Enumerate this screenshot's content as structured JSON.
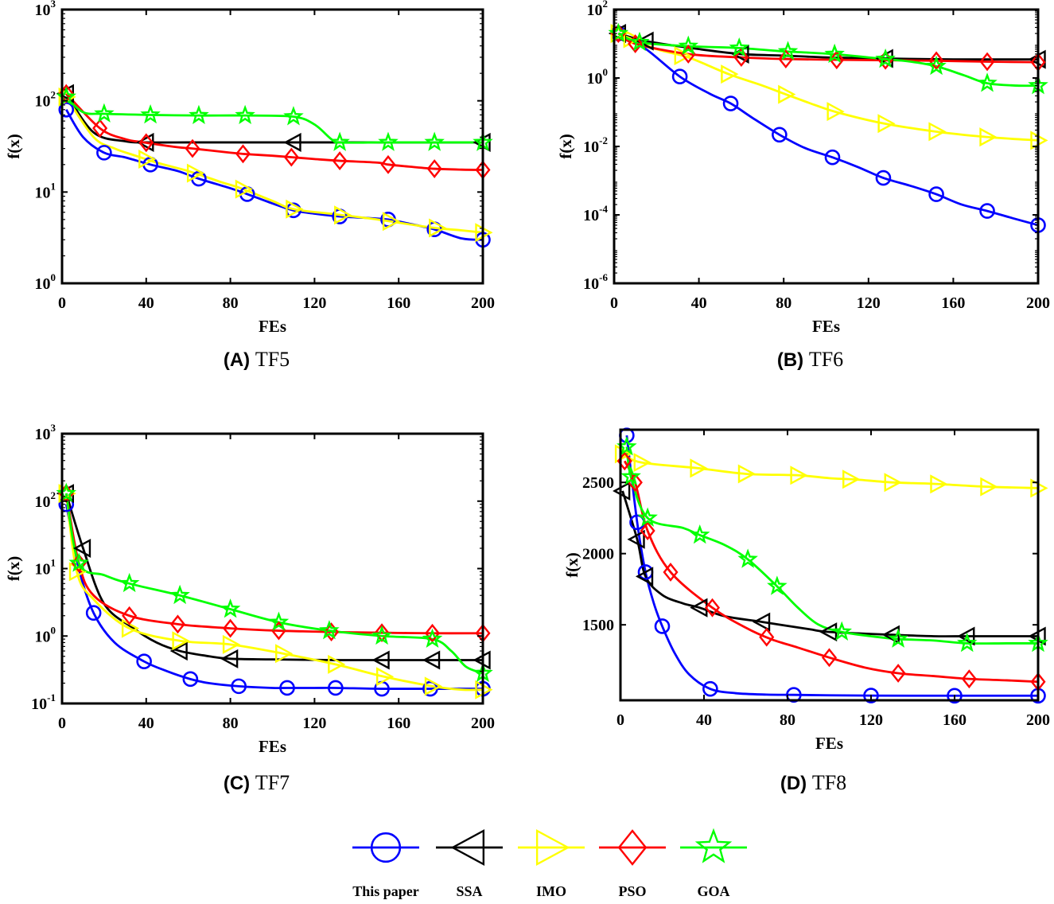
{
  "legend": [
    {
      "name": "This paper",
      "color": "#0000ff",
      "marker": "circle"
    },
    {
      "name": "SSA",
      "color": "#000000",
      "marker": "triangle-left"
    },
    {
      "name": "IMO",
      "color": "#ffff00",
      "marker": "triangle-right"
    },
    {
      "name": "PSO",
      "color": "#ff0000",
      "marker": "diamond"
    },
    {
      "name": "GOA",
      "color": "#00ff00",
      "marker": "star"
    }
  ],
  "chart_data": [
    {
      "type": "line",
      "caption_letter": "(A)",
      "caption_name": "TF5",
      "xlabel": "FEs",
      "ylabel": "f(x)",
      "yscale": "log",
      "xlim": [
        0,
        200
      ],
      "ylim": [
        1,
        1000
      ],
      "xticks": [
        0,
        40,
        80,
        120,
        160,
        200
      ],
      "yticks": [
        {
          "base": "10",
          "exp": "0",
          "v": 1
        },
        {
          "base": "10",
          "exp": "1",
          "v": 10
        },
        {
          "base": "10",
          "exp": "2",
          "v": 100
        },
        {
          "base": "10",
          "exp": "3",
          "v": 1000
        }
      ],
      "series": [
        {
          "name": "This paper",
          "x": [
            2,
            10,
            20,
            30,
            42,
            55,
            65,
            80,
            88,
            100,
            110,
            120,
            132,
            145,
            155,
            165,
            177,
            190,
            200
          ],
          "y": [
            80,
            40,
            27,
            24,
            20,
            17,
            14,
            11,
            9.5,
            7.5,
            6.3,
            5.8,
            5.4,
            5.2,
            5.0,
            4.5,
            3.9,
            3.1,
            3.0
          ],
          "markers": [
            2,
            20,
            42,
            65,
            88,
            110,
            132,
            155,
            177,
            200
          ]
        },
        {
          "name": "SSA",
          "x": [
            2,
            15,
            30,
            40,
            60,
            80,
            110,
            130,
            150,
            170,
            200
          ],
          "y": [
            120,
            45,
            36,
            35,
            35,
            35,
            35,
            35,
            35,
            35,
            35
          ],
          "markers": [
            2,
            40,
            110,
            200
          ]
        },
        {
          "name": "IMO",
          "x": [
            2,
            15,
            25,
            35,
            45,
            60,
            75,
            85,
            100,
            110,
            130,
            150,
            175,
            190,
            200
          ],
          "y": [
            110,
            40,
            30,
            25,
            21,
            17,
            13,
            11,
            8.0,
            6.5,
            5.7,
            5.0,
            4.1,
            3.8,
            3.6
          ],
          "markers": [
            2,
            40,
            63,
            86,
            110,
            133,
            156,
            178,
            200
          ]
        },
        {
          "name": "PSO",
          "x": [
            2,
            18,
            30,
            39,
            55,
            62,
            80,
            88,
            100,
            110,
            120,
            132,
            150,
            155,
            165,
            177,
            190,
            200
          ],
          "y": [
            120,
            50,
            38,
            35,
            31,
            30,
            27,
            26,
            25,
            24,
            23,
            22,
            21,
            20,
            19,
            18,
            17.6,
            17.5
          ],
          "markers": [
            2,
            18,
            40,
            62,
            86,
            109,
            132,
            155,
            177,
            200
          ]
        },
        {
          "name": "GOA",
          "x": [
            2,
            10,
            20,
            42,
            65,
            87,
            110,
            120,
            128,
            132,
            150,
            155,
            177,
            200
          ],
          "y": [
            110,
            75,
            72,
            70,
            69,
            69,
            67,
            55,
            38,
            35,
            35,
            35,
            35,
            35
          ],
          "markers": [
            2,
            20,
            42,
            65,
            87,
            110,
            132,
            155,
            177,
            200
          ]
        }
      ]
    },
    {
      "type": "line",
      "caption_letter": "(B)",
      "caption_name": "TF6",
      "xlabel": "FEs",
      "ylabel": "f(x)",
      "yscale": "log",
      "xlim": [
        0,
        200
      ],
      "ylim": [
        1e-06,
        100
      ],
      "xticks": [
        0,
        40,
        80,
        120,
        160,
        200
      ],
      "yticks": [
        {
          "base": "10",
          "exp": "-6",
          "v": 1e-06
        },
        {
          "base": "10",
          "exp": "-4",
          "v": 0.0001
        },
        {
          "base": "10",
          "exp": "-2",
          "v": 0.01
        },
        {
          "base": "10",
          "exp": "0",
          "v": 1
        },
        {
          "base": "10",
          "exp": "2",
          "v": 100
        }
      ],
      "series": [
        {
          "name": "This paper",
          "x": [
            2,
            15,
            31,
            45,
            55,
            65,
            78,
            90,
            103,
            115,
            127,
            140,
            152,
            164,
            176,
            188,
            200
          ],
          "y": [
            20,
            7,
            1.1,
            0.35,
            0.18,
            0.07,
            0.022,
            0.009,
            0.0048,
            0.0025,
            0.0012,
            0.0007,
            0.0004,
            0.0002,
            0.00013,
            8e-05,
            5e-05
          ],
          "markers": [
            2,
            31,
            55,
            78,
            103,
            127,
            152,
            176,
            200
          ]
        },
        {
          "name": "SSA",
          "x": [
            2,
            15,
            40,
            60,
            80,
            100,
            120,
            140,
            160,
            180,
            200
          ],
          "y": [
            20,
            12,
            7,
            5,
            4.5,
            4,
            3.8,
            3.6,
            3.5,
            3.5,
            3.5
          ],
          "markers": [
            2,
            15,
            60,
            128,
            200
          ]
        },
        {
          "name": "IMO",
          "x": [
            2,
            20,
            35,
            54,
            70,
            80,
            95,
            105,
            125,
            150,
            175,
            200
          ],
          "y": [
            20,
            7,
            4,
            1.3,
            0.6,
            0.35,
            0.16,
            0.1,
            0.05,
            0.028,
            0.019,
            0.015
          ],
          "markers": [
            2,
            8,
            32,
            54,
            81,
            104,
            128,
            152,
            176,
            200
          ]
        },
        {
          "name": "PSO",
          "x": [
            2,
            10,
            35,
            60,
            80,
            105,
            128,
            150,
            176,
            200
          ],
          "y": [
            20,
            10,
            5,
            4,
            3.6,
            3.4,
            3.3,
            3.2,
            3.0,
            2.9
          ],
          "markers": [
            2,
            10,
            35,
            60,
            81,
            105,
            128,
            152,
            176,
            200
          ]
        },
        {
          "name": "GOA",
          "x": [
            2,
            12,
            35,
            59,
            80,
            103,
            127,
            140,
            152,
            165,
            176,
            190,
            200
          ],
          "y": [
            20,
            11,
            8.5,
            7.5,
            6,
            5,
            3.6,
            3,
            2.2,
            1.2,
            0.7,
            0.6,
            0.6
          ],
          "markers": [
            2,
            12,
            35,
            59,
            82,
            104,
            128,
            152,
            176,
            200
          ]
        }
      ]
    },
    {
      "type": "line",
      "caption_letter": "(C)",
      "caption_name": "TF7",
      "xlabel": "FEs",
      "ylabel": "f(x)",
      "yscale": "log",
      "xlim": [
        0,
        200
      ],
      "ylim": [
        0.1,
        1000
      ],
      "xticks": [
        0,
        40,
        80,
        120,
        160,
        200
      ],
      "yticks": [
        {
          "base": "10",
          "exp": "-1",
          "v": 0.1
        },
        {
          "base": "10",
          "exp": "0",
          "v": 1
        },
        {
          "base": "10",
          "exp": "1",
          "v": 10
        },
        {
          "base": "10",
          "exp": "2",
          "v": 100
        },
        {
          "base": "10",
          "exp": "3",
          "v": 1000
        }
      ],
      "series": [
        {
          "name": "This paper",
          "x": [
            2,
            8,
            15,
            25,
            39,
            50,
            61,
            70,
            84,
            100,
            107,
            120,
            130,
            152,
            175,
            200
          ],
          "y": [
            90,
            10,
            2.2,
            0.8,
            0.42,
            0.3,
            0.23,
            0.2,
            0.18,
            0.17,
            0.17,
            0.17,
            0.17,
            0.165,
            0.165,
            0.165
          ],
          "markers": [
            2,
            15,
            39,
            61,
            84,
            107,
            130,
            152,
            175,
            200
          ]
        },
        {
          "name": "SSA",
          "x": [
            2,
            10,
            20,
            34,
            45,
            56,
            70,
            80,
            100,
            130,
            152,
            176,
            190,
            200
          ],
          "y": [
            130,
            20,
            3,
            1.3,
            0.8,
            0.6,
            0.5,
            0.46,
            0.45,
            0.44,
            0.44,
            0.44,
            0.44,
            0.44
          ],
          "markers": [
            2,
            10,
            56,
            80,
            152,
            176,
            200
          ]
        },
        {
          "name": "IMO",
          "x": [
            2,
            7,
            15,
            32,
            56,
            80,
            105,
            130,
            153,
            176,
            190,
            200
          ],
          "y": [
            130,
            9,
            3.5,
            1.3,
            0.85,
            0.75,
            0.55,
            0.38,
            0.25,
            0.18,
            0.16,
            0.16
          ],
          "markers": [
            2,
            7,
            32,
            56,
            80,
            105,
            130,
            153,
            176,
            200
          ]
        },
        {
          "name": "PSO",
          "x": [
            2,
            8,
            15,
            32,
            55,
            80,
            103,
            128,
            150,
            176,
            200
          ],
          "y": [
            130,
            12,
            4,
            2,
            1.5,
            1.3,
            1.2,
            1.15,
            1.12,
            1.1,
            1.1
          ],
          "markers": [
            2,
            8,
            32,
            55,
            80,
            103,
            128,
            152,
            176,
            200
          ]
        },
        {
          "name": "GOA",
          "x": [
            2,
            8,
            20,
            32,
            56,
            80,
            103,
            127,
            152,
            176,
            185,
            192,
            200
          ],
          "y": [
            130,
            12,
            8,
            6,
            4,
            2.5,
            1.6,
            1.2,
            1.0,
            0.9,
            0.6,
            0.35,
            0.28
          ],
          "markers": [
            2,
            8,
            32,
            56,
            80,
            103,
            127,
            152,
            176,
            200
          ]
        }
      ]
    },
    {
      "type": "line",
      "caption_letter": "(D)",
      "caption_name": "TF8",
      "xlabel": "FEs",
      "ylabel": "f(x)",
      "yscale": "linear",
      "xlim": [
        0,
        200
      ],
      "ylim": [
        970,
        2870
      ],
      "xticks": [
        0,
        40,
        80,
        120,
        160,
        200
      ],
      "yticks": [
        {
          "label": "1500",
          "v": 1500
        },
        {
          "label": "2000",
          "v": 2000
        },
        {
          "label": "2500",
          "v": 2500
        }
      ],
      "series": [
        {
          "name": "This paper",
          "x": [
            3,
            8,
            12,
            16,
            20,
            26,
            33,
            43,
            55,
            70,
            83,
            100,
            120,
            140,
            160,
            180,
            200
          ],
          "y": [
            2830,
            2220,
            1870,
            1650,
            1490,
            1300,
            1150,
            1050,
            1020,
            1010,
            1008,
            1005,
            1003,
            1002,
            1002,
            1002,
            1002
          ],
          "markers": [
            3,
            8,
            12,
            20,
            43,
            83,
            120,
            160,
            200
          ]
        },
        {
          "name": "SSA",
          "x": [
            1,
            8,
            12,
            20,
            30,
            38,
            50,
            68,
            90,
            100,
            130,
            150,
            166,
            185,
            200
          ],
          "y": [
            2440,
            2100,
            1840,
            1710,
            1650,
            1620,
            1560,
            1520,
            1470,
            1450,
            1430,
            1420,
            1420,
            1420,
            1420
          ],
          "markers": [
            1,
            8,
            12,
            38,
            68,
            100,
            130,
            166,
            200
          ]
        },
        {
          "name": "IMO",
          "x": [
            1,
            10,
            37,
            60,
            85,
            100,
            113,
            130,
            150,
            175,
            200
          ],
          "y": [
            2700,
            2640,
            2600,
            2560,
            2550,
            2530,
            2520,
            2500,
            2490,
            2470,
            2460
          ],
          "markers": [
            1,
            10,
            37,
            60,
            85,
            110,
            130,
            152,
            176,
            200
          ]
        },
        {
          "name": "PSO",
          "x": [
            2,
            7,
            13,
            24,
            44,
            60,
            72,
            85,
            100,
            117,
            133,
            150,
            167,
            185,
            200
          ],
          "y": [
            2650,
            2500,
            2160,
            1870,
            1620,
            1480,
            1400,
            1340,
            1270,
            1200,
            1160,
            1140,
            1120,
            1110,
            1100
          ],
          "markers": [
            2,
            7,
            13,
            24,
            44,
            70,
            100,
            133,
            167,
            200
          ]
        },
        {
          "name": "GOA",
          "x": [
            3,
            5,
            13,
            30,
            38,
            50,
            61,
            75,
            85,
            95,
            106,
            120,
            133,
            150,
            166,
            185,
            200
          ],
          "y": [
            2750,
            2540,
            2250,
            2180,
            2130,
            2060,
            1960,
            1770,
            1620,
            1500,
            1450,
            1420,
            1400,
            1390,
            1370,
            1370,
            1370
          ],
          "markers": [
            3,
            5,
            13,
            38,
            61,
            75,
            106,
            133,
            166,
            200
          ]
        }
      ]
    }
  ]
}
